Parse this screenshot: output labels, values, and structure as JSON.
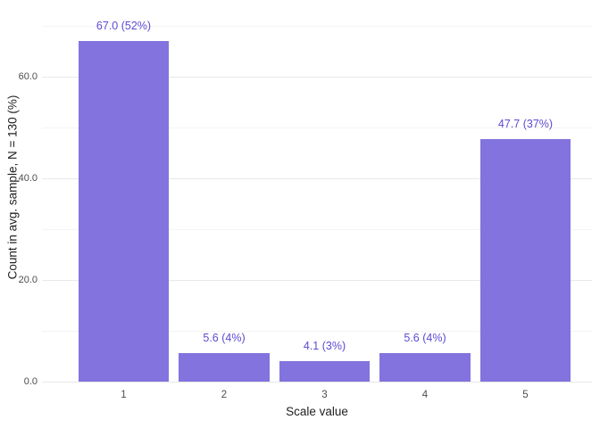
{
  "chart_data": {
    "type": "bar",
    "title": "",
    "xlabel": "Scale value",
    "ylabel": "Count in avg. sample, N = 130 (%)",
    "categories": [
      "1",
      "2",
      "3",
      "4",
      "5"
    ],
    "values": [
      67.0,
      5.6,
      4.1,
      5.6,
      47.7
    ],
    "percentages": [
      52,
      4,
      3,
      4,
      37
    ],
    "bar_labels": [
      "67.0 (52%)",
      "5.6 (4%)",
      "4.1 (3%)",
      "5.6 (4%)",
      "47.7 (37%)"
    ],
    "sample_n": 130,
    "ylim": [
      0,
      70.35
    ],
    "yticks": [
      {
        "value": 0,
        "label": "0.0"
      },
      {
        "value": 20,
        "label": "20.0"
      },
      {
        "value": 40,
        "label": "40.0"
      },
      {
        "value": 60,
        "label": "60.0"
      }
    ],
    "minor_gridlines": [
      10,
      30,
      50,
      70
    ],
    "grid": true,
    "legend": false,
    "colors": {
      "bar_fill": "#8273DE",
      "bar_label_text": "#5C4BD3",
      "axis_tick_text": "#4D4D4D",
      "axis_title_text": "#1F1F1F",
      "grid_major": "#E8E8E8",
      "grid_minor": "#F4F4F4",
      "background": "#FFFFFF"
    }
  }
}
